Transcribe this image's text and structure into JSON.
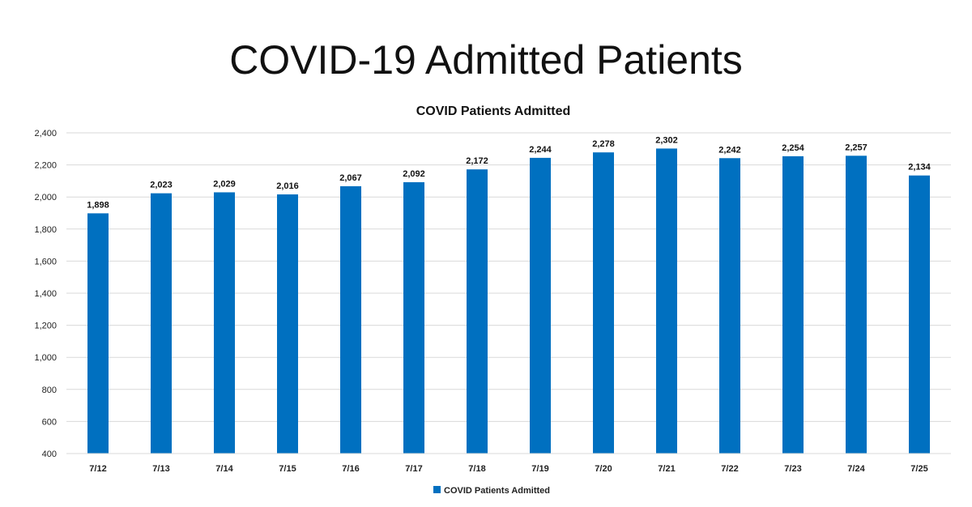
{
  "page_title": "COVID-19 Admitted Patients",
  "chart_data": {
    "type": "bar",
    "title": "COVID Patients Admitted",
    "xlabel": "",
    "ylabel": "",
    "categories": [
      "7/12",
      "7/13",
      "7/14",
      "7/15",
      "7/16",
      "7/17",
      "7/18",
      "7/19",
      "7/20",
      "7/21",
      "7/22",
      "7/23",
      "7/24",
      "7/25"
    ],
    "series": [
      {
        "name": "COVID Patients Admitted",
        "color": "#0070C0",
        "values": [
          1898,
          2023,
          2029,
          2016,
          2067,
          2092,
          2172,
          2244,
          2278,
          2302,
          2242,
          2254,
          2257,
          2134
        ]
      }
    ],
    "data_labels": [
      "1,898",
      "2,023",
      "2,029",
      "2,016",
      "2,067",
      "2,092",
      "2,172",
      "2,244",
      "2,278",
      "2,302",
      "2,242",
      "2,254",
      "2,257",
      "2,134"
    ],
    "y_ticks": [
      "400",
      "600",
      "800",
      "1,000",
      "1,200",
      "1,400",
      "1,600",
      "1,800",
      "2,000",
      "2,200",
      "2,400"
    ],
    "y_tick_values": [
      400,
      600,
      800,
      1000,
      1200,
      1400,
      1600,
      1800,
      2000,
      2200,
      2400
    ],
    "ylim": [
      400,
      2400
    ],
    "grid": true,
    "legend_position": "bottom-center"
  }
}
